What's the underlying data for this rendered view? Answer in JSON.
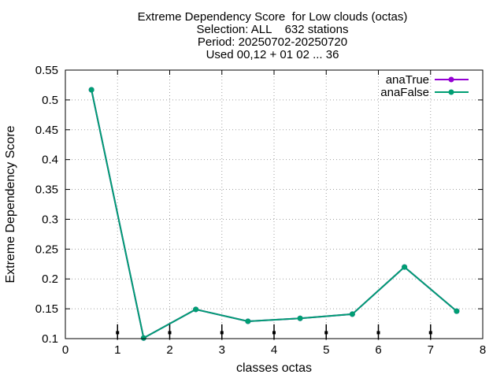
{
  "chart_data": {
    "type": "line",
    "title_lines": [
      "Extreme Dependency Score  for Low clouds (octas)",
      "Selection: ALL    632 stations",
      "Period: 20250702-20250720",
      "Used 00,12 + 01 02 ... 36"
    ],
    "xlabel": "classes octas",
    "ylabel": "Extreme Dependency Score",
    "xlim": [
      0,
      8
    ],
    "ylim": [
      0.1,
      0.55
    ],
    "x_ticks": [
      0,
      1,
      2,
      3,
      4,
      5,
      6,
      7,
      8
    ],
    "y_ticks": [
      0.1,
      0.15,
      0.2,
      0.25,
      0.3,
      0.35,
      0.4,
      0.45,
      0.5,
      0.55
    ],
    "y_tick_labels": [
      "0.1",
      "0.15",
      "0.2",
      "0.25",
      "0.3",
      "0.35",
      "0.4",
      "0.45",
      "0.5",
      "0.55"
    ],
    "grid": true,
    "legend_position": "top-right",
    "series": [
      {
        "name": "anaTrue",
        "color": "#9400d3",
        "x": [
          0.5,
          1.5,
          2.5,
          3.5,
          4.5,
          5.5,
          6.5,
          7.5
        ],
        "values": [
          0.517,
          0.101,
          0.149,
          0.129,
          0.134,
          0.141,
          0.22,
          0.146
        ]
      },
      {
        "name": "anaFalse",
        "color": "#009e73",
        "x": [
          0.5,
          1.5,
          2.5,
          3.5,
          4.5,
          5.5,
          6.5,
          7.5
        ],
        "values": [
          0.517,
          0.101,
          0.149,
          0.129,
          0.134,
          0.141,
          0.22,
          0.146
        ]
      }
    ],
    "error_bars": {
      "x": [
        1,
        2,
        3,
        4,
        5,
        6,
        7
      ],
      "center": 0.11,
      "low": 0.098,
      "high": 0.124
    }
  }
}
